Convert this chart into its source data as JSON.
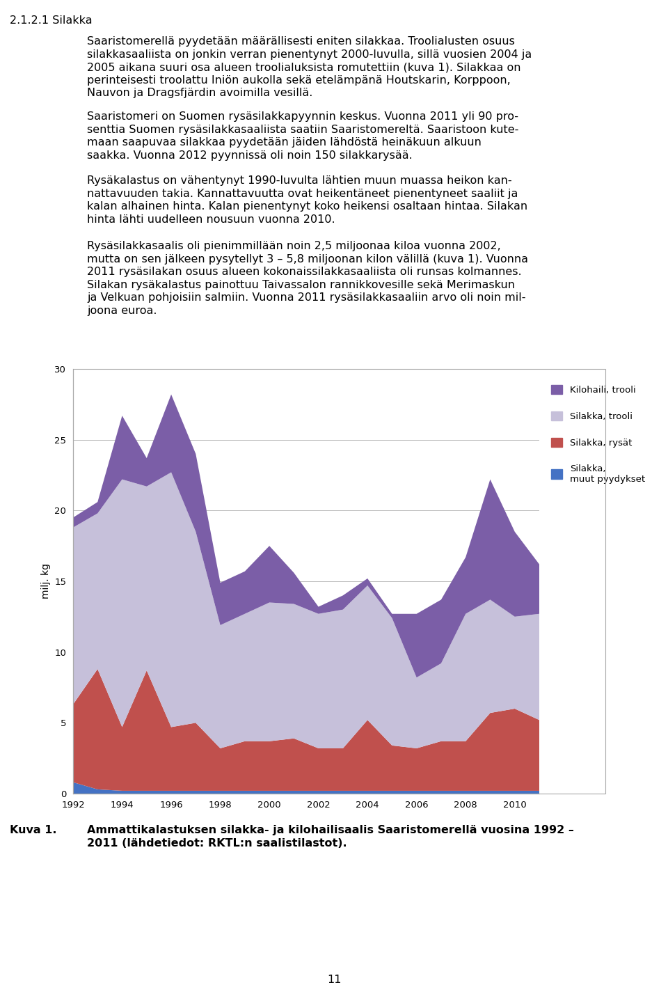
{
  "years": [
    1992,
    1993,
    1994,
    1995,
    1996,
    1997,
    1998,
    1999,
    2000,
    2001,
    2002,
    2003,
    2004,
    2005,
    2006,
    2007,
    2008,
    2009,
    2010,
    2011
  ],
  "silakka_muut": [
    0.8,
    0.3,
    0.2,
    0.2,
    0.2,
    0.2,
    0.2,
    0.2,
    0.2,
    0.2,
    0.2,
    0.2,
    0.2,
    0.2,
    0.2,
    0.2,
    0.2,
    0.2,
    0.2,
    0.2
  ],
  "silakka_rysat": [
    5.5,
    8.5,
    4.5,
    8.5,
    4.5,
    4.8,
    3.0,
    3.5,
    3.5,
    3.7,
    3.0,
    3.0,
    5.0,
    3.2,
    3.0,
    3.5,
    3.5,
    5.5,
    5.8,
    5.0
  ],
  "silakka_trooli": [
    12.5,
    11.0,
    17.5,
    13.0,
    18.0,
    13.5,
    8.7,
    9.0,
    9.8,
    9.5,
    9.5,
    9.8,
    9.5,
    9.0,
    5.0,
    5.5,
    9.0,
    8.0,
    6.5,
    7.5
  ],
  "kilohaili_trooli": [
    0.7,
    0.8,
    4.5,
    2.0,
    5.5,
    5.5,
    3.0,
    3.0,
    4.0,
    2.2,
    0.5,
    1.0,
    0.5,
    0.3,
    4.5,
    4.5,
    4.0,
    8.5,
    6.0,
    3.5
  ],
  "color_muut": "#4472C4",
  "color_rysat": "#C0504D",
  "color_trooli": "#C6C0DA",
  "color_kilohaili": "#7B5EA7",
  "ylabel": "milj. kg",
  "ylim": [
    0,
    30
  ],
  "yticks": [
    0,
    5,
    10,
    15,
    20,
    25,
    30
  ],
  "xticks": [
    1992,
    1994,
    1996,
    1998,
    2000,
    2002,
    2004,
    2006,
    2008,
    2010
  ]
}
